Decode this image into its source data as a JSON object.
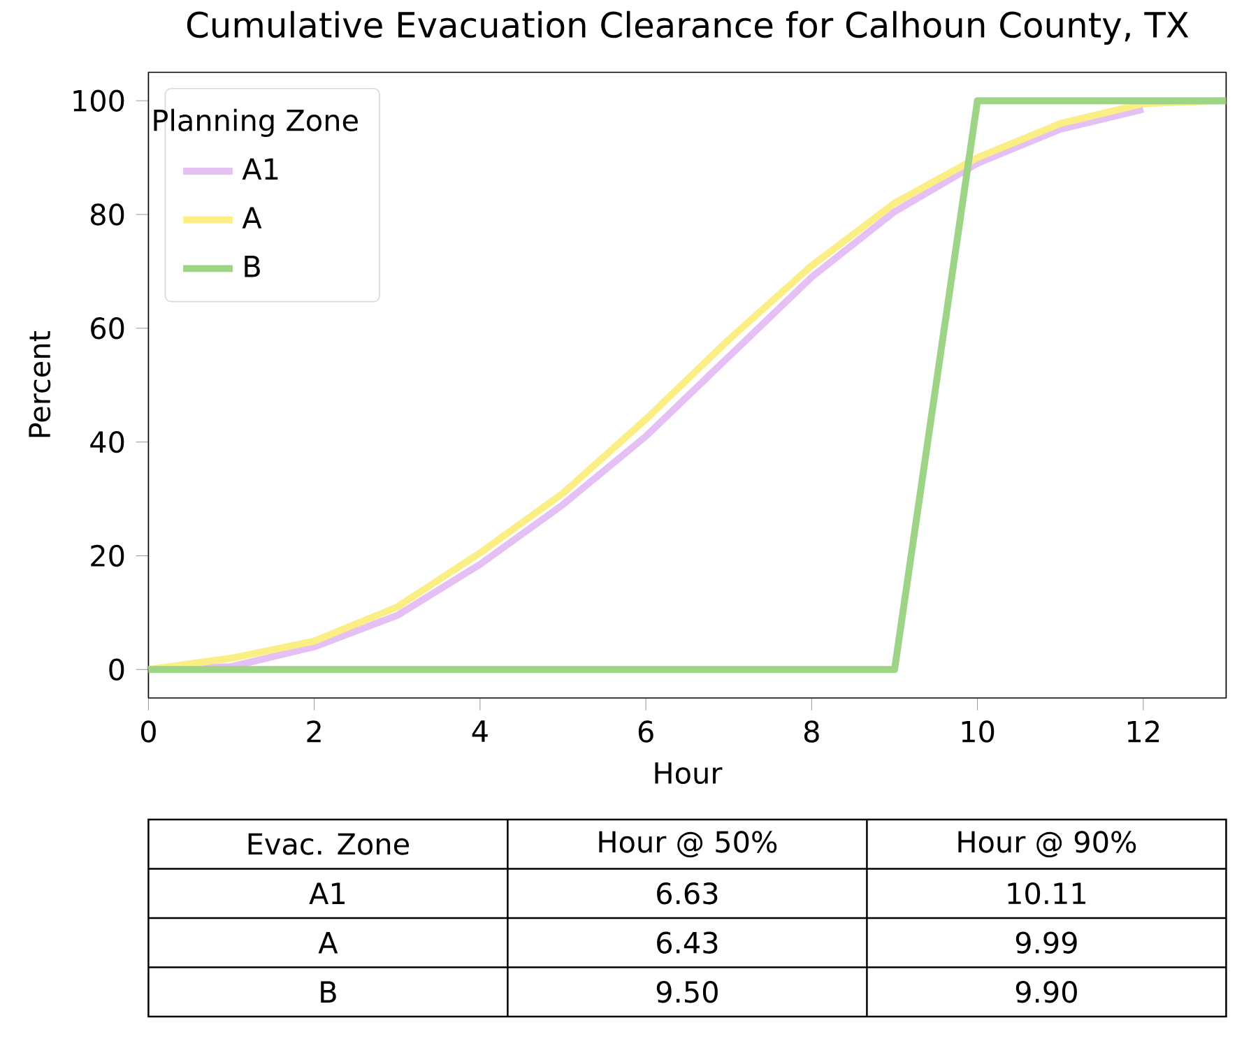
{
  "chart_data": {
    "type": "line",
    "title": "Cumulative Evacuation Clearance for Calhoun County, TX",
    "xlabel": "Hour",
    "ylabel": "Percent",
    "legend_title": "Planning Zone",
    "legend": "top left",
    "x": [
      0,
      1,
      2,
      3,
      4,
      5,
      6,
      7,
      8,
      9,
      10,
      11,
      12,
      13
    ],
    "series": [
      {
        "name": "A1",
        "color": "#e5c0f5",
        "values": [
          0,
          0.5,
          4,
          9.5,
          18.5,
          29,
          41,
          55,
          69,
          80.5,
          89,
          95,
          98.5,
          null
        ]
      },
      {
        "name": "A",
        "color": "#fbee85",
        "values": [
          0,
          2,
          5,
          11,
          20.5,
          31,
          44,
          58,
          71,
          82,
          90,
          96,
          99.5,
          100
        ]
      },
      {
        "name": "B",
        "color": "#9ed485",
        "values": [
          0,
          0,
          0,
          0,
          0,
          0,
          0,
          0,
          0,
          0,
          100,
          100,
          100,
          100
        ]
      }
    ],
    "xlim": [
      0,
      13
    ],
    "ylim": [
      -5,
      105
    ],
    "xticks": [
      0,
      2,
      4,
      6,
      8,
      10,
      12
    ],
    "yticks": [
      0,
      20,
      40,
      60,
      80,
      100
    ],
    "grid": false,
    "annotations": [
      "Evac. Zone",
      "Hour @ 50%",
      "Hour @ 90%",
      "A1",
      "6.63",
      "10.11",
      "A",
      "6.43",
      "9.99",
      "B",
      "9.50",
      "9.90"
    ]
  }
}
